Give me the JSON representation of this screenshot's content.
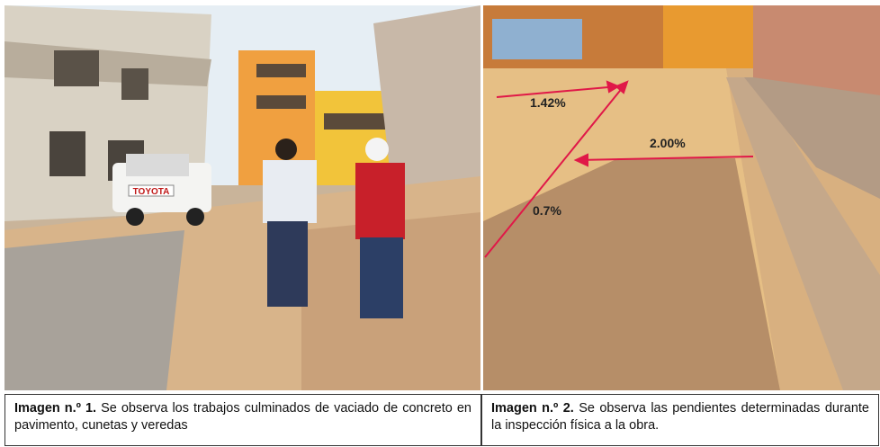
{
  "figures": [
    {
      "label": "Imagen n.º 1.",
      "caption": "Se observa los trabajos culminados de vaciado de concreto en pavimento, cunetas y veredas",
      "plate": "TOYOTA"
    },
    {
      "label": "Imagen n.º 2.",
      "caption": "Se observa las pendientes determinadas durante la inspección física a la obra.",
      "annotations": [
        "1.42%",
        "2.00%",
        "0.7%"
      ]
    }
  ]
}
